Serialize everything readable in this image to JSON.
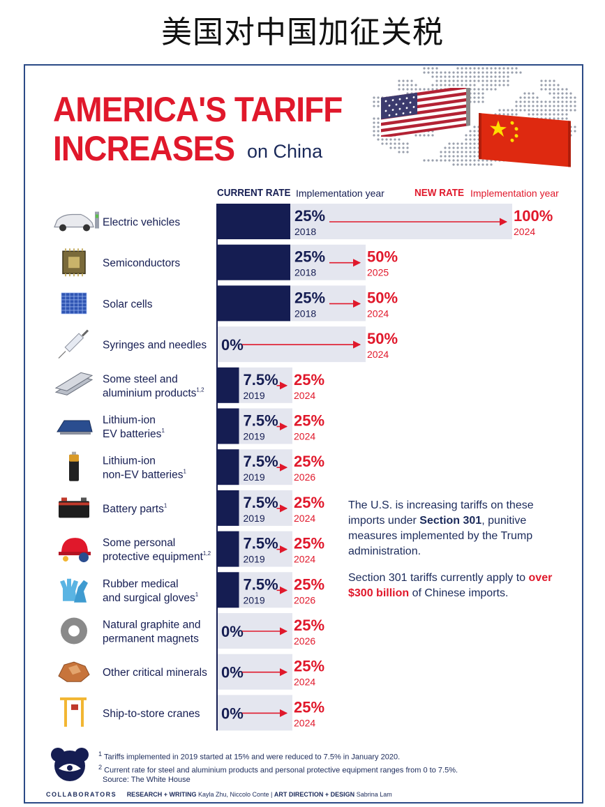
{
  "top_title": "美国对中国加征关税",
  "headline": {
    "line1": "AMERICA'S TARIFF",
    "line2": "INCREASES",
    "line3": "on China"
  },
  "headers": {
    "current": "CURRENT RATE",
    "current_sub": "Implementation year",
    "new": "NEW RATE",
    "new_sub": "Implementation year"
  },
  "colors": {
    "navy": "#151d52",
    "red": "#e0182b",
    "bar_bg": "#e4e6ef"
  },
  "chart_data": {
    "type": "bar",
    "title": "AMERICA'S TARIFF INCREASES on China",
    "categories": [
      "Electric vehicles",
      "Semiconductors",
      "Solar cells",
      "Syringes and needles",
      "Some steel and aluminium products",
      "Lithium-ion EV batteries",
      "Lithium-ion non-EV batteries",
      "Battery parts",
      "Some personal protective equipment",
      "Rubber medical and surgical gloves",
      "Natural graphite and permanent magnets",
      "Other critical minerals",
      "Ship-to-store cranes"
    ],
    "rows": [
      {
        "label_lines": [
          "Electric vehicles"
        ],
        "sup": "",
        "icon": "electric-car-icon",
        "current": 25,
        "current_label": "25%",
        "current_year": "2018",
        "new": 100,
        "new_label": "100%",
        "new_year": "2024"
      },
      {
        "label_lines": [
          "Semiconductors"
        ],
        "sup": "",
        "icon": "microchip-icon",
        "current": 25,
        "current_label": "25%",
        "current_year": "2018",
        "new": 50,
        "new_label": "50%",
        "new_year": "2025"
      },
      {
        "label_lines": [
          "Solar cells"
        ],
        "sup": "",
        "icon": "solar-panel-icon",
        "current": 25,
        "current_label": "25%",
        "current_year": "2018",
        "new": 50,
        "new_label": "50%",
        "new_year": "2024"
      },
      {
        "label_lines": [
          "Syringes and needles"
        ],
        "sup": "",
        "icon": "syringe-icon",
        "current": 0,
        "current_label": "0%",
        "current_year": "",
        "new": 50,
        "new_label": "50%",
        "new_year": "2024"
      },
      {
        "label_lines": [
          "Some steel and",
          "aluminium products"
        ],
        "sup": "1,2",
        "icon": "steel-beam-icon",
        "current": 7.5,
        "current_label": "7.5%",
        "current_year": "2019",
        "new": 25,
        "new_label": "25%",
        "new_year": "2024"
      },
      {
        "label_lines": [
          "Lithium-ion",
          "EV batteries"
        ],
        "sup": "1",
        "icon": "ev-battery-icon",
        "current": 7.5,
        "current_label": "7.5%",
        "current_year": "2019",
        "new": 25,
        "new_label": "25%",
        "new_year": "2024"
      },
      {
        "label_lines": [
          "Lithium-ion",
          "non-EV batteries"
        ],
        "sup": "1",
        "icon": "battery-cell-icon",
        "current": 7.5,
        "current_label": "7.5%",
        "current_year": "2019",
        "new": 25,
        "new_label": "25%",
        "new_year": "2026"
      },
      {
        "label_lines": [
          "Battery parts"
        ],
        "sup": "1",
        "icon": "car-battery-icon",
        "current": 7.5,
        "current_label": "7.5%",
        "current_year": "2019",
        "new": 25,
        "new_label": "25%",
        "new_year": "2024"
      },
      {
        "label_lines": [
          "Some personal",
          "protective equipment"
        ],
        "sup": "1,2",
        "icon": "hard-hat-icon",
        "current": 7.5,
        "current_label": "7.5%",
        "current_year": "2019",
        "new": 25,
        "new_label": "25%",
        "new_year": "2024"
      },
      {
        "label_lines": [
          "Rubber medical",
          "and surgical gloves"
        ],
        "sup": "1",
        "icon": "gloves-icon",
        "current": 7.5,
        "current_label": "7.5%",
        "current_year": "2019",
        "new": 25,
        "new_label": "25%",
        "new_year": "2026"
      },
      {
        "label_lines": [
          "Natural graphite and",
          "permanent magnets"
        ],
        "sup": "",
        "icon": "magnet-ring-icon",
        "current": 0,
        "current_label": "0%",
        "current_year": "",
        "new": 25,
        "new_label": "25%",
        "new_year": "2026"
      },
      {
        "label_lines": [
          "Other critical minerals"
        ],
        "sup": "",
        "icon": "copper-ore-icon",
        "current": 0,
        "current_label": "0%",
        "current_year": "",
        "new": 25,
        "new_label": "25%",
        "new_year": "2024"
      },
      {
        "label_lines": [
          "Ship-to-store cranes"
        ],
        "sup": "",
        "icon": "crane-icon",
        "current": 0,
        "current_label": "0%",
        "current_year": "",
        "new": 25,
        "new_label": "25%",
        "new_year": "2024"
      }
    ]
  },
  "note": {
    "p1_before": "The U.S. is increasing tariffs on these imports under ",
    "p1_bold": "Section 301",
    "p1_after": ", punitive measures implemented by the Trump administration.",
    "p2_before": "Section 301 tariffs currently apply to ",
    "p2_red": "over $300 billion",
    "p2_after": " of Chinese imports."
  },
  "footnotes": {
    "f1_mark": "1",
    "f1": "Tariffs implemented in 2019 started at 15% and were reduced to 7.5% in January 2020.",
    "f2_mark": "2",
    "f2": "Current rate for steel and aluminium products and personal protective equipment ranges from 0 to 7.5%.",
    "source": "Source: The White House"
  },
  "credits": {
    "brand": "COLLABORATORS",
    "rw_label": "RESEARCH + WRITING",
    "rw_names": "Kayla Zhu, Niccolo Conte",
    "sep": "|",
    "ad_label": "ART DIRECTION + DESIGN",
    "ad_names": "Sabrina Lam"
  }
}
